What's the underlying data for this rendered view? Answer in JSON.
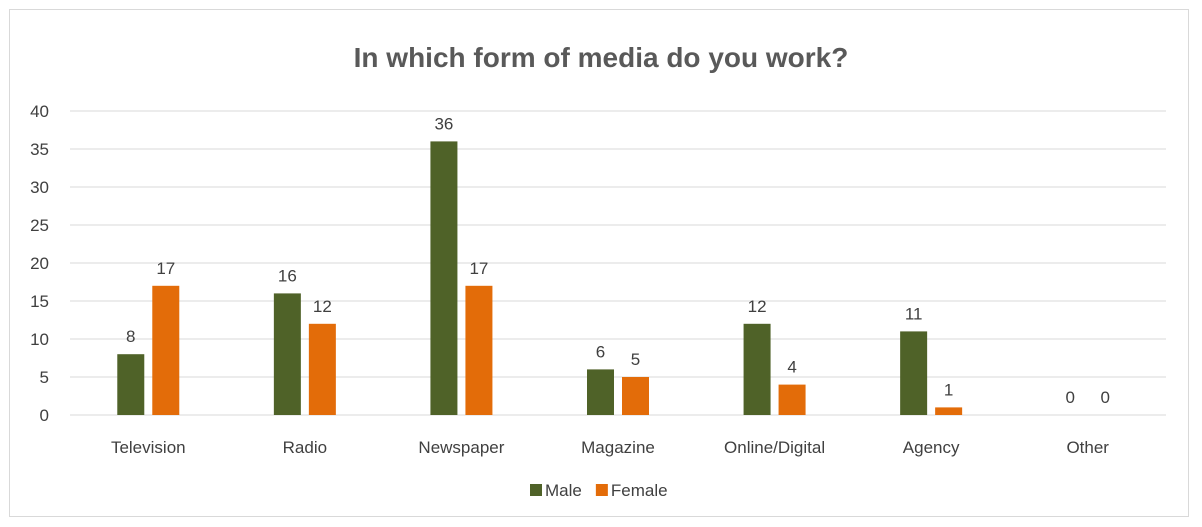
{
  "chart_data": {
    "type": "bar",
    "title": "In which form of media do you work?",
    "categories": [
      "Television",
      "Radio",
      "Newspaper",
      "Magazine",
      "Online/Digital",
      "Agency",
      "Other"
    ],
    "series": [
      {
        "name": "Male",
        "values": [
          8,
          16,
          36,
          6,
          12,
          11,
          0
        ],
        "color": "#4f6228"
      },
      {
        "name": "Female",
        "values": [
          17,
          12,
          17,
          5,
          4,
          1,
          0
        ],
        "color": "#e36c09"
      }
    ],
    "ylim": [
      0,
      40
    ],
    "yticks": [
      0,
      5,
      10,
      15,
      20,
      25,
      30,
      35,
      40
    ],
    "grid": true,
    "legend_position": "bottom"
  }
}
